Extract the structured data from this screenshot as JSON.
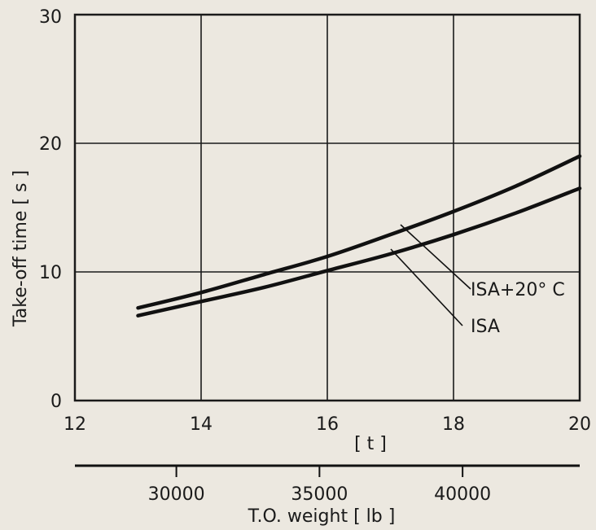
{
  "chart_data": {
    "type": "line",
    "ylabel": "Take-off time [ s ]",
    "xlabel": "[ t ]",
    "x2label": "T.O. weight [ lb ]",
    "xlim": [
      12,
      20
    ],
    "ylim": [
      0,
      30
    ],
    "x_ticks": [
      "12",
      "14",
      "16",
      "18",
      "20"
    ],
    "y_ticks": [
      "0",
      "10",
      "20",
      "30"
    ],
    "x2_ticks": [
      "30000",
      "35000",
      "40000"
    ],
    "x2_tick_values": [
      30000,
      35000,
      40000
    ],
    "grid": true,
    "series": [
      {
        "name": "ISA+20° C",
        "x": [
          13,
          14,
          15,
          16,
          17,
          18,
          19,
          20
        ],
        "y": [
          7.2,
          8.4,
          9.8,
          11.2,
          12.9,
          14.7,
          16.7,
          19.0
        ]
      },
      {
        "name": "ISA",
        "x": [
          13,
          14,
          15,
          16,
          17,
          18,
          19,
          20
        ],
        "y": [
          6.6,
          7.7,
          8.8,
          10.1,
          11.4,
          12.9,
          14.6,
          16.5
        ]
      }
    ]
  }
}
